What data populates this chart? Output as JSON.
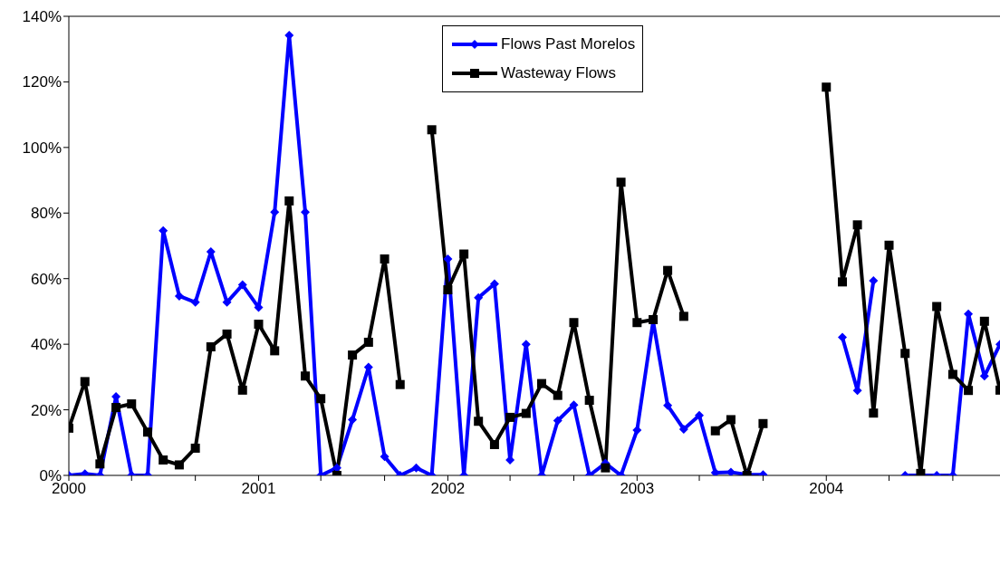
{
  "chart_data": {
    "type": "line",
    "x": [
      "2000-01",
      "2000-02",
      "2000-03",
      "2000-04",
      "2000-05",
      "2000-06",
      "2000-07",
      "2000-08",
      "2000-09",
      "2000-10",
      "2000-11",
      "2000-12",
      "2001-01",
      "2001-02",
      "2001-03",
      "2001-04",
      "2001-05",
      "2001-06",
      "2001-07",
      "2001-08",
      "2001-09",
      "2001-10",
      "2001-11",
      "2001-12",
      "2002-01",
      "2002-02",
      "2002-03",
      "2002-04",
      "2002-05",
      "2002-06",
      "2002-07",
      "2002-08",
      "2002-09",
      "2002-10",
      "2002-11",
      "2002-12",
      "2003-01",
      "2003-02",
      "2003-03",
      "2003-04",
      "2003-05",
      "2003-06",
      "2003-07",
      "2003-08",
      "2003-09",
      "2003-10",
      "2003-11",
      "2003-12",
      "2004-01",
      "2004-02",
      "2004-03",
      "2004-04",
      "2004-05",
      "2004-06",
      "2004-07",
      "2004-08",
      "2004-09",
      "2004-10",
      "2004-11",
      "2004-12"
    ],
    "series": [
      {
        "name": "Flows Past Morelos",
        "color": "#0000ff",
        "marker": "diamond",
        "values": [
          0,
          0.5,
          0,
          24,
          0,
          0,
          74.6,
          54.7,
          52.8,
          68.2,
          52.8,
          58.1,
          51.2,
          80.3,
          134.2,
          80.3,
          0,
          2.3,
          17,
          33,
          5.7,
          0,
          2.3,
          0,
          66,
          0,
          54.2,
          58.4,
          4.7,
          40,
          0,
          16.7,
          21.5,
          0,
          3.7,
          0,
          13.8,
          47,
          21.3,
          14.1,
          18.3,
          0.8,
          1,
          0.2,
          0.2,
          null,
          null,
          null,
          null,
          42.1,
          25.9,
          59.4,
          null,
          0,
          0,
          0,
          0,
          49.2,
          30.3,
          40
        ]
      },
      {
        "name": "Wasteway Flows",
        "color": "#000000",
        "marker": "square",
        "values": [
          14.4,
          28.6,
          3.5,
          20.7,
          21.8,
          13.2,
          4.7,
          3.2,
          8.3,
          39.2,
          43.1,
          26,
          46.1,
          38,
          83.7,
          30.3,
          23.4,
          0,
          36.7,
          40.6,
          66,
          27.7,
          null,
          105.4,
          56.6,
          67.5,
          16.5,
          9.4,
          17.7,
          18.9,
          28,
          24.4,
          46.6,
          22.9,
          2.3,
          89.4,
          46.6,
          47.5,
          62.5,
          48.5,
          null,
          13.6,
          17,
          0,
          15.8,
          null,
          null,
          null,
          118.4,
          59,
          76.4,
          19,
          70.2,
          37.2,
          0.6,
          51.5,
          30.8,
          25.9,
          47,
          26
        ]
      }
    ],
    "xlim": [
      "2000-01",
      "2004-12"
    ],
    "xticks": [
      {
        "value": "2000-01",
        "label": "2000"
      },
      {
        "value": "2000-05",
        "label": null
      },
      {
        "value": "2000-09",
        "label": null
      },
      {
        "value": "2001-01",
        "label": "2001"
      },
      {
        "value": "2001-05",
        "label": null
      },
      {
        "value": "2001-09",
        "label": null
      },
      {
        "value": "2002-01",
        "label": "2002"
      },
      {
        "value": "2002-05",
        "label": null
      },
      {
        "value": "2002-09",
        "label": null
      },
      {
        "value": "2003-01",
        "label": "2003"
      },
      {
        "value": "2003-05",
        "label": null
      },
      {
        "value": "2003-09",
        "label": null
      },
      {
        "value": "2004-01",
        "label": "2004"
      },
      {
        "value": "2004-05",
        "label": null
      },
      {
        "value": "2004-09",
        "label": null
      }
    ],
    "ylim": [
      0,
      140
    ],
    "yticks": [
      {
        "value": 0,
        "label": "0%"
      },
      {
        "value": 20,
        "label": "20%"
      },
      {
        "value": 40,
        "label": "40%"
      },
      {
        "value": 60,
        "label": "60%"
      },
      {
        "value": 80,
        "label": "80%"
      },
      {
        "value": 100,
        "label": "100%"
      },
      {
        "value": 120,
        "label": "120%"
      },
      {
        "value": 140,
        "label": "140%"
      }
    ],
    "grid": false,
    "legend": "top",
    "line_style": "solid"
  }
}
